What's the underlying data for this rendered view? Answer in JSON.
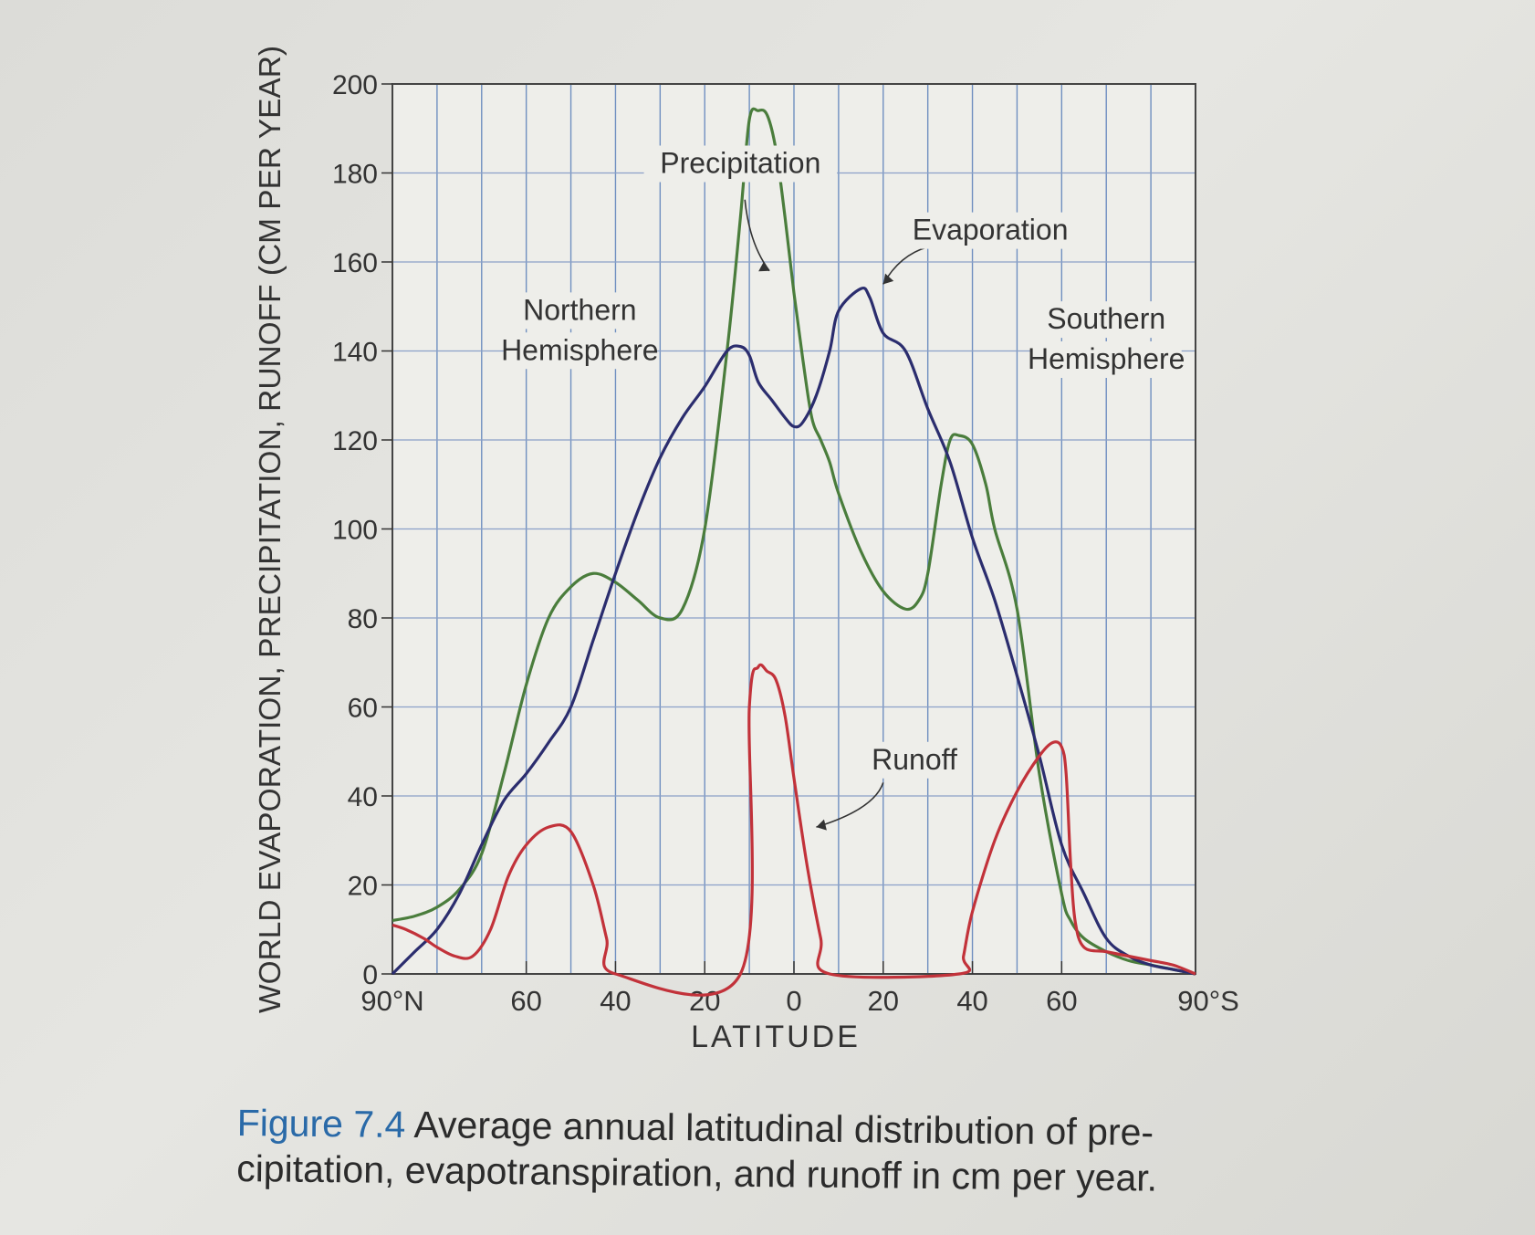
{
  "chart_data": {
    "type": "line",
    "title": "",
    "xlabel": "LATITUDE",
    "ylabel": "WORLD EVAPORATION, PRECIPITATION, RUNOFF (CM PER YEAR)",
    "xlim": [
      -90,
      90
    ],
    "ylim": [
      0,
      200
    ],
    "grid": true,
    "x_ticks": [
      {
        "value": -90,
        "label": "90°N"
      },
      {
        "value": -60,
        "label": "60"
      },
      {
        "value": -40,
        "label": "40"
      },
      {
        "value": -20,
        "label": "20"
      },
      {
        "value": 0,
        "label": "0"
      },
      {
        "value": 20,
        "label": "20"
      },
      {
        "value": 40,
        "label": "40"
      },
      {
        "value": 60,
        "label": "60"
      },
      {
        "value": 90,
        "label": "90°S"
      }
    ],
    "y_ticks": [
      0,
      20,
      40,
      60,
      80,
      100,
      120,
      140,
      160,
      180,
      200
    ],
    "series": [
      {
        "name": "Precipitation",
        "color": "#4a7d3c",
        "x": [
          -90,
          -85,
          -80,
          -75,
          -70,
          -65,
          -60,
          -55,
          -50,
          -45,
          -40,
          -35,
          -30,
          -25,
          -20,
          -15,
          -12,
          -10,
          -8,
          -6,
          -4,
          -2,
          0,
          2,
          4,
          6,
          8,
          10,
          15,
          20,
          25,
          28,
          30,
          33,
          35,
          37,
          40,
          43,
          45,
          50,
          55,
          60,
          62,
          65,
          70,
          75,
          80,
          85,
          90
        ],
        "y": [
          12,
          13,
          15,
          19,
          27,
          45,
          65,
          80,
          87,
          90,
          88,
          84,
          80,
          82,
          100,
          140,
          170,
          192,
          194,
          193,
          185,
          170,
          153,
          138,
          125,
          120,
          115,
          108,
          95,
          86,
          82,
          84,
          90,
          110,
          120,
          121,
          119,
          110,
          100,
          82,
          45,
          18,
          12,
          8,
          5,
          3,
          2,
          1,
          0
        ]
      },
      {
        "name": "Evaporation",
        "color": "#2b2d6e",
        "x": [
          -90,
          -85,
          -80,
          -75,
          -70,
          -65,
          -60,
          -55,
          -50,
          -45,
          -40,
          -35,
          -30,
          -25,
          -20,
          -15,
          -12,
          -10,
          -8,
          -5,
          -2,
          0,
          2,
          5,
          8,
          10,
          15,
          17,
          20,
          25,
          30,
          35,
          40,
          45,
          50,
          55,
          60,
          65,
          70,
          75,
          80,
          85,
          90
        ],
        "y": [
          0,
          5,
          10,
          18,
          29,
          39,
          45,
          52,
          60,
          75,
          90,
          104,
          116,
          125,
          132,
          140,
          141,
          139,
          133,
          129,
          125,
          123,
          124,
          130,
          140,
          149,
          154,
          152,
          144,
          140,
          127,
          115,
          98,
          84,
          67,
          49,
          29,
          18,
          8,
          4,
          2,
          1,
          0
        ]
      },
      {
        "name": "Runoff",
        "color": "#c2323a",
        "x": [
          -90,
          -87,
          -83,
          -80,
          -76,
          -72,
          -68,
          -64,
          -60,
          -55,
          -50,
          -45,
          -42,
          -40,
          -12,
          -10,
          -8,
          -6,
          -4,
          -2,
          0,
          3,
          6,
          8,
          37,
          38,
          40,
          45,
          50,
          55,
          58,
          60,
          61,
          62,
          63,
          65,
          70,
          75,
          80,
          85,
          90
        ],
        "y": [
          11,
          10,
          8,
          6,
          4,
          4,
          10,
          22,
          29,
          33,
          32,
          20,
          8,
          0,
          0,
          60,
          69,
          68,
          66,
          58,
          44,
          24,
          8,
          0,
          0,
          4,
          14,
          30,
          41,
          49,
          52,
          51,
          45,
          25,
          12,
          6,
          5,
          4,
          3,
          2,
          0
        ]
      }
    ],
    "annotations": [
      {
        "text": "Precipitation",
        "x": -12,
        "y": 180
      },
      {
        "text": "Evaporation",
        "x": 44,
        "y": 165
      },
      {
        "text": "Northern",
        "x": -48,
        "y": 147
      },
      {
        "text": "Hemisphere",
        "x": -48,
        "y": 138
      },
      {
        "text": "Southern",
        "x": 70,
        "y": 145
      },
      {
        "text": "Hemisphere",
        "x": 70,
        "y": 136
      },
      {
        "text": "Runoff",
        "x": 27,
        "y": 46
      }
    ]
  },
  "caption": {
    "label": "Figure 7.4",
    "text": " Average annual latitudinal distribution of pre-",
    "text2": "cipitation, evapotranspiration, and runoff in cm per year."
  }
}
